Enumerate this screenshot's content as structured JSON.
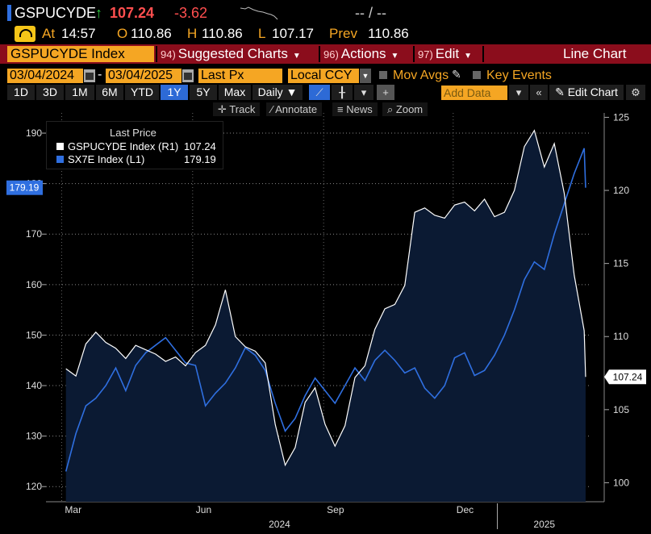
{
  "quote": {
    "ticker": "GSPUCYDE",
    "arrow": "↑",
    "last": "107.24",
    "change": "-3.62",
    "dash_mid": "-- / --",
    "at_label": "At",
    "time": "14:57",
    "open_label": "O",
    "open": "110.86",
    "high_label": "H",
    "high": "110.86",
    "low_label": "L",
    "low": "107.17",
    "prev_label": "Prev",
    "prev": "110.86"
  },
  "menubar": {
    "security": "GSPUCYDE Index",
    "suggested_num": "94)",
    "suggested": "Suggested Charts",
    "actions_num": "96)",
    "actions": "Actions",
    "edit_num": "97)",
    "edit": "Edit",
    "chart_type": "Line Chart"
  },
  "controls": {
    "start_date": "03/04/2024",
    "end_date": "03/04/2025",
    "date_sep": "-",
    "field": "Last Px",
    "currency": "Local CCY",
    "mov_avgs": "Mov Avgs",
    "key_events": "Key Events"
  },
  "toolbar": {
    "periods": [
      "1D",
      "3D",
      "1M",
      "6M",
      "YTD",
      "1Y",
      "5Y",
      "Max"
    ],
    "selected_period": "1Y",
    "frequency": "Daily",
    "add_data": "Add Data",
    "edit_chart": "Edit Chart"
  },
  "subtoolbar": {
    "track": "Track",
    "annotate": "Annotate",
    "news": "News",
    "zoom": "Zoom"
  },
  "legend": {
    "title": "Last Price",
    "items": [
      {
        "name": "GSPUCYDE Index (R1)",
        "value": "107.24",
        "color": "#ffffff"
      },
      {
        "name": "SX7E Index (L1)",
        "value": "179.19",
        "color": "#2f6fe0"
      }
    ]
  },
  "chart_data": {
    "type": "line",
    "left_axis": {
      "ticks": [
        "120",
        "130",
        "140",
        "150",
        "160",
        "170",
        "180",
        "190"
      ],
      "range": [
        117,
        194
      ]
    },
    "right_axis": {
      "ticks": [
        "100",
        "105",
        "110",
        "115",
        "120",
        "125"
      ],
      "range": [
        98.7,
        125.3
      ]
    },
    "x_month_labels": [
      "Mar",
      "Jun",
      "Sep",
      "Dec"
    ],
    "x_year_labels": [
      "2024",
      "2025"
    ],
    "grid": true,
    "series": [
      {
        "name": "GSPUCYDE Index (R1)",
        "axis": "right",
        "color": "#ffffff",
        "last_label": "107.24",
        "points": [
          [
            "2024-03-04",
            107.8
          ],
          [
            "2024-03-11",
            107.3
          ],
          [
            "2024-03-18",
            109.5
          ],
          [
            "2024-03-25",
            110.3
          ],
          [
            "2024-04-01",
            109.6
          ],
          [
            "2024-04-08",
            109.2
          ],
          [
            "2024-04-15",
            108.5
          ],
          [
            "2024-04-22",
            109.4
          ],
          [
            "2024-04-29",
            109.1
          ],
          [
            "2024-05-06",
            108.8
          ],
          [
            "2024-05-13",
            108.3
          ],
          [
            "2024-05-20",
            108.6
          ],
          [
            "2024-05-27",
            108.0
          ],
          [
            "2024-06-03",
            108.9
          ],
          [
            "2024-06-10",
            109.4
          ],
          [
            "2024-06-17",
            110.8
          ],
          [
            "2024-06-24",
            113.2
          ],
          [
            "2024-07-01",
            110.0
          ],
          [
            "2024-07-08",
            109.3
          ],
          [
            "2024-07-15",
            109.0
          ],
          [
            "2024-07-22",
            108.2
          ],
          [
            "2024-07-29",
            104.0
          ],
          [
            "2024-08-05",
            101.2
          ],
          [
            "2024-08-12",
            102.4
          ],
          [
            "2024-08-19",
            105.5
          ],
          [
            "2024-08-26",
            106.5
          ],
          [
            "2024-09-02",
            104.0
          ],
          [
            "2024-09-09",
            102.5
          ],
          [
            "2024-09-16",
            103.9
          ],
          [
            "2024-09-23",
            107.2
          ],
          [
            "2024-09-30",
            108.0
          ],
          [
            "2024-10-07",
            110.5
          ],
          [
            "2024-10-14",
            111.9
          ],
          [
            "2024-10-21",
            112.2
          ],
          [
            "2024-10-28",
            113.5
          ],
          [
            "2024-11-04",
            118.5
          ],
          [
            "2024-11-11",
            118.8
          ],
          [
            "2024-11-18",
            118.3
          ],
          [
            "2024-11-25",
            118.1
          ],
          [
            "2024-12-02",
            119.0
          ],
          [
            "2024-12-09",
            119.2
          ],
          [
            "2024-12-16",
            118.6
          ],
          [
            "2024-12-23",
            119.4
          ],
          [
            "2024-12-30",
            118.2
          ],
          [
            "2025-01-06",
            118.5
          ],
          [
            "2025-01-13",
            120.0
          ],
          [
            "2025-01-20",
            123.0
          ],
          [
            "2025-01-27",
            124.1
          ],
          [
            "2025-02-03",
            121.6
          ],
          [
            "2025-02-10",
            123.2
          ],
          [
            "2025-02-17",
            119.8
          ],
          [
            "2025-02-24",
            114.2
          ],
          [
            "2025-03-03",
            110.4
          ],
          [
            "2025-03-04",
            107.24
          ]
        ]
      },
      {
        "name": "SX7E Index (L1)",
        "axis": "left",
        "color": "#2f6fe0",
        "last_label": "179.19",
        "points": [
          [
            "2024-03-04",
            123.0
          ],
          [
            "2024-03-11",
            130.5
          ],
          [
            "2024-03-18",
            136.0
          ],
          [
            "2024-03-25",
            137.5
          ],
          [
            "2024-04-01",
            140.0
          ],
          [
            "2024-04-08",
            143.5
          ],
          [
            "2024-04-15",
            139.0
          ],
          [
            "2024-04-22",
            144.0
          ],
          [
            "2024-04-29",
            146.5
          ],
          [
            "2024-05-06",
            148.0
          ],
          [
            "2024-05-13",
            149.5
          ],
          [
            "2024-05-20",
            147.0
          ],
          [
            "2024-05-27",
            144.5
          ],
          [
            "2024-06-03",
            144.0
          ],
          [
            "2024-06-10",
            136.0
          ],
          [
            "2024-06-17",
            138.5
          ],
          [
            "2024-06-24",
            140.5
          ],
          [
            "2024-07-01",
            143.5
          ],
          [
            "2024-07-08",
            147.5
          ],
          [
            "2024-07-15",
            146.0
          ],
          [
            "2024-07-22",
            143.0
          ],
          [
            "2024-07-29",
            136.5
          ],
          [
            "2024-08-05",
            131.0
          ],
          [
            "2024-08-12",
            133.5
          ],
          [
            "2024-08-19",
            138.0
          ],
          [
            "2024-08-26",
            141.5
          ],
          [
            "2024-09-02",
            139.0
          ],
          [
            "2024-09-09",
            136.5
          ],
          [
            "2024-09-16",
            140.0
          ],
          [
            "2024-09-23",
            143.5
          ],
          [
            "2024-09-30",
            141.0
          ],
          [
            "2024-10-07",
            145.0
          ],
          [
            "2024-10-14",
            147.0
          ],
          [
            "2024-10-21",
            145.0
          ],
          [
            "2024-10-28",
            142.5
          ],
          [
            "2024-11-04",
            143.5
          ],
          [
            "2024-11-11",
            139.5
          ],
          [
            "2024-11-18",
            137.5
          ],
          [
            "2024-11-25",
            140.0
          ],
          [
            "2024-12-02",
            145.5
          ],
          [
            "2024-12-09",
            146.5
          ],
          [
            "2024-12-16",
            142.0
          ],
          [
            "2024-12-23",
            143.0
          ],
          [
            "2024-12-30",
            146.0
          ],
          [
            "2025-01-06",
            150.0
          ],
          [
            "2025-01-13",
            155.0
          ],
          [
            "2025-01-20",
            161.0
          ],
          [
            "2025-01-27",
            164.5
          ],
          [
            "2025-02-03",
            163.0
          ],
          [
            "2025-02-10",
            170.0
          ],
          [
            "2025-02-17",
            176.0
          ],
          [
            "2025-02-24",
            182.0
          ],
          [
            "2025-03-03",
            187.0
          ],
          [
            "2025-03-04",
            179.19
          ]
        ]
      }
    ]
  }
}
